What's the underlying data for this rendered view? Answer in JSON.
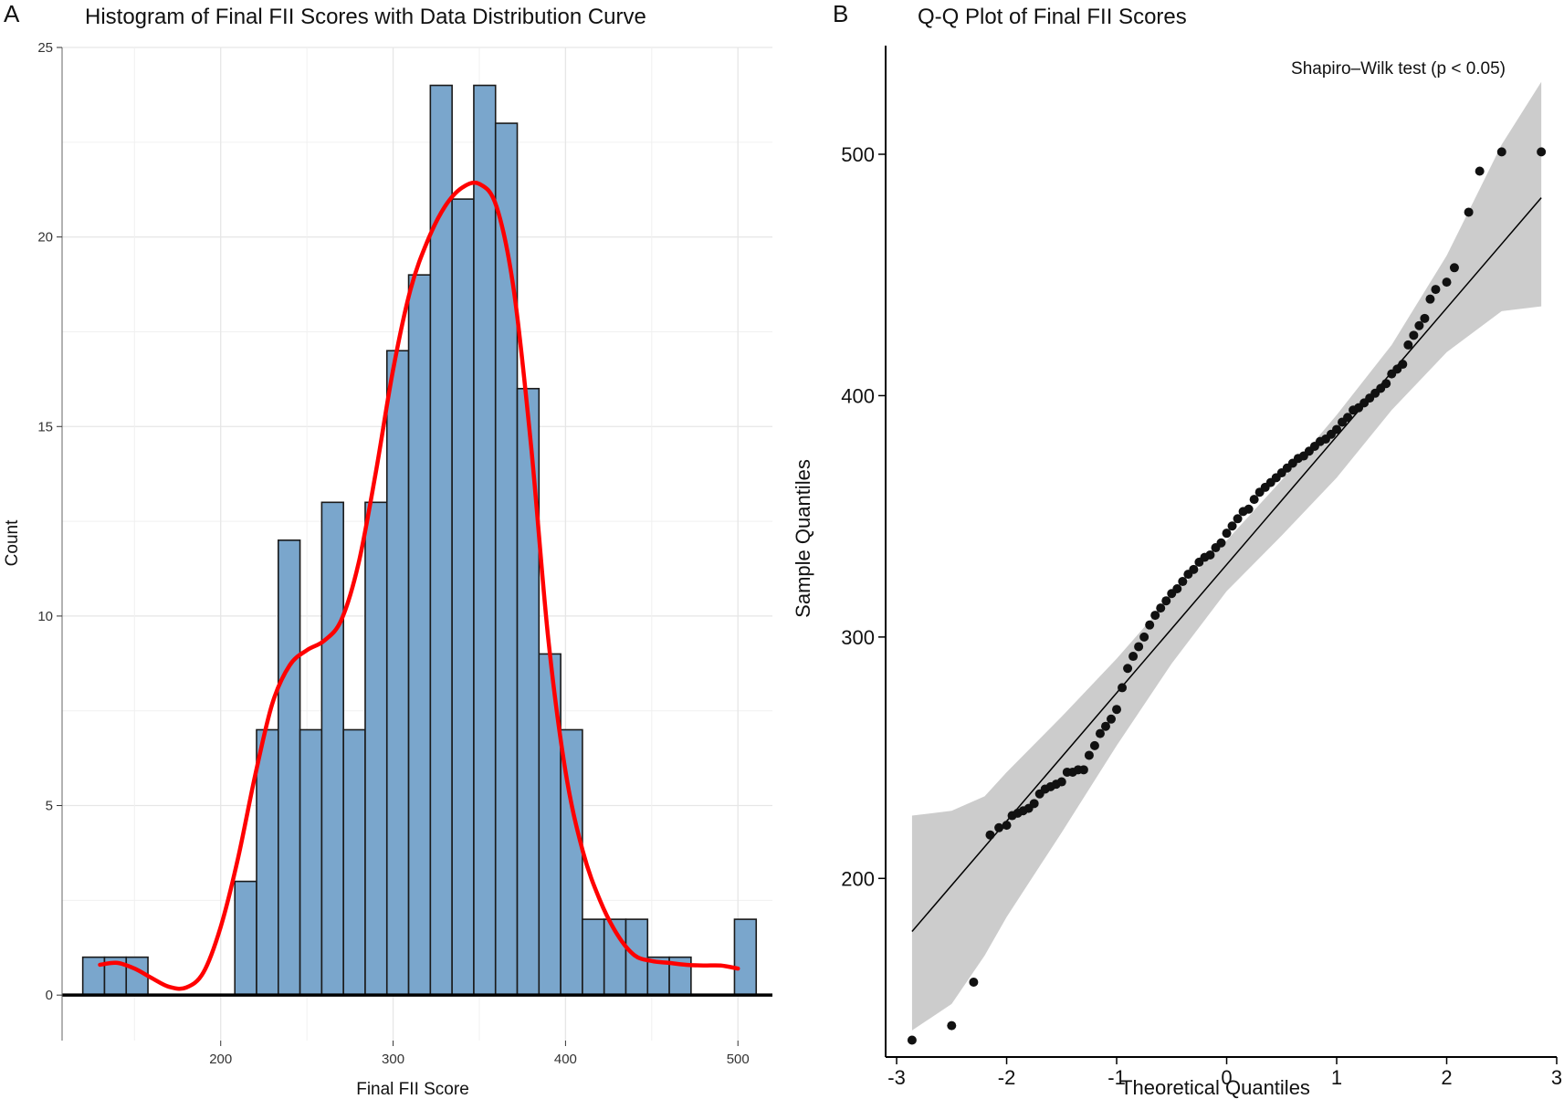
{
  "chart_data": [
    {
      "panel": "A",
      "type": "bar",
      "title": "Histogram of Final FII Scores with Data Distribution Curve",
      "xlabel": "Final FII Score",
      "ylabel": "Count",
      "xlim": [
        108,
        520
      ],
      "ylim": [
        -1.2,
        25
      ],
      "xticks": [
        200,
        300,
        400,
        500
      ],
      "yticks": [
        0,
        5,
        10,
        15,
        20,
        25
      ],
      "grid": true,
      "bin_width": 12.6,
      "bins_start": [
        120,
        132.6,
        145.2,
        157.8,
        170.4,
        183,
        195.6,
        208.2,
        220.8,
        233.4,
        246,
        258.6,
        271.2,
        283.8,
        296.4,
        309,
        321.6,
        334.2,
        346.8,
        359.4,
        372,
        384.6,
        397.2,
        409.8,
        422.4,
        435,
        447.6,
        460.2,
        472.8,
        485.4,
        498
      ],
      "counts": [
        1,
        1,
        1,
        0,
        0,
        0,
        0,
        3,
        7,
        12,
        7,
        13,
        7,
        13,
        17,
        19,
        24,
        21,
        24,
        23,
        16,
        9,
        7,
        2,
        2,
        2,
        1,
        1,
        0,
        0,
        2
      ],
      "bar_color": "#7aa6cc",
      "curve": {
        "name": "Data Distribution Curve",
        "color": "#ff0000",
        "x": [
          130,
          140,
          150,
          160,
          170,
          180,
          190,
          200,
          210,
          220,
          230,
          240,
          250,
          260,
          270,
          280,
          290,
          300,
          310,
          320,
          330,
          340,
          350,
          360,
          370,
          380,
          390,
          400,
          410,
          420,
          430,
          440,
          450,
          460,
          470,
          480,
          490,
          500
        ],
        "y": [
          0.8,
          0.85,
          0.7,
          0.45,
          0.22,
          0.2,
          0.6,
          1.8,
          3.6,
          5.8,
          7.7,
          8.7,
          9.1,
          9.35,
          9.9,
          11.4,
          13.8,
          16.5,
          18.6,
          19.9,
          20.8,
          21.3,
          21.4,
          20.8,
          18.6,
          14.5,
          9.4,
          5.9,
          3.8,
          2.5,
          1.6,
          1.05,
          0.9,
          0.85,
          0.8,
          0.78,
          0.78,
          0.7
        ]
      }
    },
    {
      "panel": "B",
      "type": "scatter",
      "title": "Q-Q Plot of Final FII Scores",
      "xlabel": "Theoretical Quantiles",
      "ylabel": "Sample Quantiles",
      "annotation": "Shapiro–Wilk test (p < 0.05)",
      "xlim": [
        -3.1,
        3.0
      ],
      "ylim": [
        126,
        545
      ],
      "xticks": [
        -3,
        -2,
        -1,
        0,
        1,
        2,
        3
      ],
      "yticks": [
        200,
        300,
        400,
        500
      ],
      "grid": false,
      "reference_line": {
        "x": [
          -2.86,
          2.86
        ],
        "y": [
          178,
          482
        ]
      },
      "confidence_band": {
        "x": [
          -2.86,
          -2.5,
          -2.2,
          -2.0,
          -1.5,
          -1.0,
          -0.5,
          0.0,
          0.5,
          1.0,
          1.5,
          2.0,
          2.5,
          2.86
        ],
        "upper": [
          226,
          228,
          234,
          244,
          267,
          291,
          317,
          340,
          365,
          392,
          421,
          458,
          504,
          530
        ],
        "lower": [
          137,
          148,
          168,
          184,
          219,
          255,
          289,
          319,
          342,
          366,
          394,
          418,
          435,
          437
        ]
      },
      "points_color": "#111111",
      "points": {
        "x": [
          -2.86,
          -2.5,
          -2.3,
          -2.15,
          -2.07,
          -2.0,
          -1.95,
          -1.9,
          -1.85,
          -1.8,
          -1.75,
          -1.7,
          -1.65,
          -1.6,
          -1.55,
          -1.5,
          -1.45,
          -1.4,
          -1.35,
          -1.3,
          -1.25,
          -1.2,
          -1.15,
          -1.1,
          -1.05,
          -1.0,
          -0.95,
          -0.9,
          -0.85,
          -0.8,
          -0.75,
          -0.7,
          -0.65,
          -0.6,
          -0.55,
          -0.5,
          -0.45,
          -0.4,
          -0.35,
          -0.3,
          -0.25,
          -0.2,
          -0.15,
          -0.1,
          -0.05,
          0.0,
          0.05,
          0.1,
          0.15,
          0.2,
          0.25,
          0.3,
          0.35,
          0.4,
          0.45,
          0.5,
          0.55,
          0.6,
          0.65,
          0.7,
          0.75,
          0.8,
          0.85,
          0.9,
          0.95,
          1.0,
          1.05,
          1.1,
          1.15,
          1.2,
          1.25,
          1.3,
          1.35,
          1.4,
          1.45,
          1.5,
          1.55,
          1.6,
          1.65,
          1.7,
          1.75,
          1.8,
          1.85,
          1.9,
          2.0,
          2.07,
          2.2,
          2.3,
          2.5,
          2.86
        ],
        "y": [
          133,
          139,
          157,
          218,
          221,
          222,
          226,
          227,
          228,
          229,
          231,
          235,
          237,
          238,
          239,
          240,
          244,
          244,
          245,
          245,
          251,
          255,
          260,
          263,
          266,
          270,
          279,
          287,
          292,
          296,
          300,
          305,
          309,
          312,
          315,
          318,
          320,
          323,
          326,
          328,
          331,
          333,
          334,
          337,
          339,
          343,
          346,
          349,
          352,
          353,
          357,
          360,
          362,
          364,
          366,
          368,
          370,
          372,
          374,
          375,
          377,
          379,
          381,
          382,
          384,
          386,
          389,
          391,
          394,
          395,
          397,
          399,
          401,
          403,
          405,
          409,
          411,
          413,
          421,
          425,
          429,
          432,
          440,
          444,
          447,
          453,
          476,
          493,
          501,
          501
        ]
      }
    }
  ]
}
